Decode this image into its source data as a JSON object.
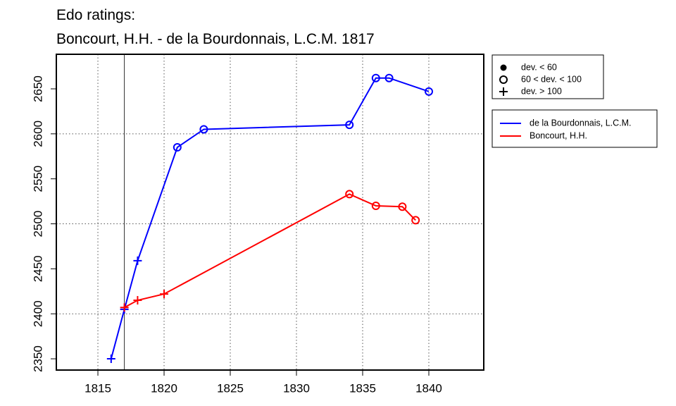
{
  "chart_data": {
    "type": "line",
    "title": [
      "Edo ratings:",
      "Boncourt, H.H. - de la Bourdonnais, L.C.M. 1817"
    ],
    "series": [
      {
        "name": "de la Bourdonnais, L.C.M.",
        "color": "#0000ff",
        "x": [
          1816,
          1817,
          1818,
          1821,
          1823,
          1834,
          1836,
          1837,
          1840
        ],
        "values": [
          2350,
          2405,
          2459,
          2585,
          2605,
          2610,
          2662,
          2662,
          2647
        ],
        "markers": [
          "plus",
          "plus",
          "plus",
          "circle",
          "circle",
          "circle",
          "circle",
          "circle",
          "circle"
        ]
      },
      {
        "name": "Boncourt, H.H.",
        "color": "#ff0000",
        "x": [
          1817,
          1818,
          1820,
          1834,
          1836,
          1838,
          1839
        ],
        "values": [
          2407,
          2415,
          2422,
          2533,
          2520,
          2519,
          2504
        ],
        "markers": [
          "plus",
          "plus",
          "plus",
          "circle",
          "circle",
          "circle",
          "circle"
        ]
      }
    ],
    "marker_legend": [
      {
        "label": "dev. < 60",
        "marker": "dot"
      },
      {
        "label": "60 < dev. < 100",
        "marker": "circle"
      },
      {
        "label": "dev. > 100",
        "marker": "plus"
      }
    ],
    "xlim": [
      1811.86,
      1844.15
    ],
    "xticks": [
      1815,
      1820,
      1825,
      1830,
      1835,
      1840
    ],
    "ylim": [
      2337.5,
      2688.4
    ],
    "yticks": [
      2350,
      2400,
      2450,
      2500,
      2550,
      2600,
      2650
    ],
    "ygrid": [
      2400,
      2500,
      2600
    ],
    "xgrid": true,
    "vline": 1817
  }
}
